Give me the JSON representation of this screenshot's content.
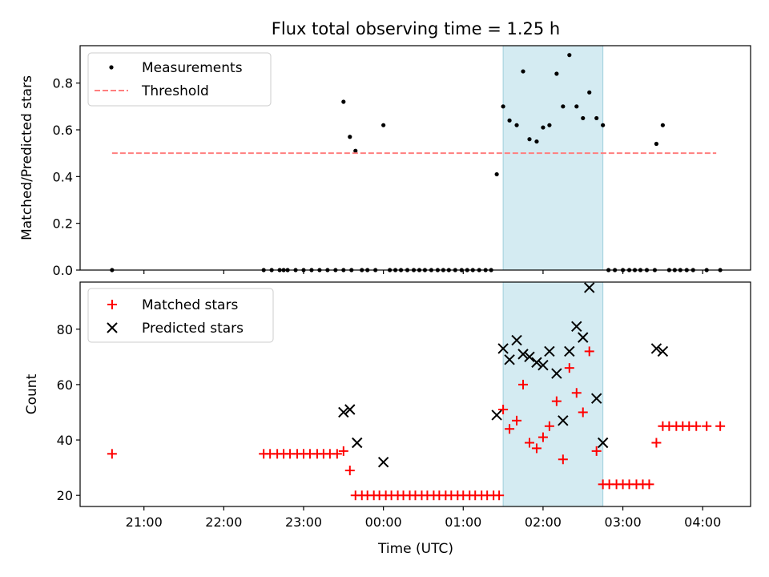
{
  "chart_data": {
    "title": "Flux total observing time = 1.25 h",
    "x_axis": {
      "label": "Time (UTC)",
      "unit": "hours relative to 00:00 UTC",
      "range": [
        -3.8,
        4.6
      ],
      "ticks": [
        -3,
        -2,
        -1,
        0,
        1,
        2,
        3,
        4
      ],
      "tick_labels": [
        "21:00",
        "22:00",
        "23:00",
        "00:00",
        "01:00",
        "02:00",
        "03:00",
        "04:00"
      ]
    },
    "highlight_span": [
      1.5,
      2.75
    ],
    "panels": [
      {
        "type": "scatter",
        "ylabel": "Matched/Predicted stars",
        "ylim": [
          0,
          0.96
        ],
        "yticks": [
          0.0,
          0.2,
          0.4,
          0.6,
          0.8
        ],
        "ytick_labels": [
          "0.0",
          "0.2",
          "0.4",
          "0.6",
          "0.8"
        ],
        "legend_position": "upper left",
        "series": [
          {
            "name": "Measurements",
            "type": "scatter",
            "marker": "dot",
            "color": "#000000",
            "points": [
              [
                -3.4,
                0.0
              ],
              [
                -1.5,
                0.0
              ],
              [
                -1.4,
                0.0
              ],
              [
                -1.3,
                0.0
              ],
              [
                -1.25,
                0.0
              ],
              [
                -1.2,
                0.0
              ],
              [
                -1.1,
                0.0
              ],
              [
                -1.0,
                0.0
              ],
              [
                -0.9,
                0.0
              ],
              [
                -0.8,
                0.0
              ],
              [
                -0.7,
                0.0
              ],
              [
                -0.6,
                0.0
              ],
              [
                -0.5,
                0.0
              ],
              [
                -0.4,
                0.0
              ],
              [
                -0.5,
                0.72
              ],
              [
                -0.42,
                0.57
              ],
              [
                -0.35,
                0.51
              ],
              [
                -0.27,
                0.0
              ],
              [
                -0.2,
                0.0
              ],
              [
                -0.1,
                0.0
              ],
              [
                0.0,
                0.62
              ],
              [
                0.08,
                0.0
              ],
              [
                0.15,
                0.0
              ],
              [
                0.22,
                0.0
              ],
              [
                0.3,
                0.0
              ],
              [
                0.38,
                0.0
              ],
              [
                0.45,
                0.0
              ],
              [
                0.52,
                0.0
              ],
              [
                0.6,
                0.0
              ],
              [
                0.68,
                0.0
              ],
              [
                0.75,
                0.0
              ],
              [
                0.82,
                0.0
              ],
              [
                0.9,
                0.0
              ],
              [
                0.98,
                0.0
              ],
              [
                1.05,
                0.0
              ],
              [
                1.12,
                0.0
              ],
              [
                1.2,
                0.0
              ],
              [
                1.28,
                0.0
              ],
              [
                1.35,
                0.0
              ],
              [
                1.42,
                0.41
              ],
              [
                1.5,
                0.7
              ],
              [
                1.58,
                0.64
              ],
              [
                1.67,
                0.62
              ],
              [
                1.75,
                0.85
              ],
              [
                1.83,
                0.56
              ],
              [
                1.92,
                0.55
              ],
              [
                2.0,
                0.61
              ],
              [
                2.08,
                0.62
              ],
              [
                2.17,
                0.84
              ],
              [
                2.25,
                0.7
              ],
              [
                2.33,
                0.92
              ],
              [
                2.42,
                0.7
              ],
              [
                2.5,
                0.65
              ],
              [
                2.58,
                0.76
              ],
              [
                2.67,
                0.65
              ],
              [
                2.75,
                0.62
              ],
              [
                2.82,
                0.0
              ],
              [
                2.9,
                0.0
              ],
              [
                3.0,
                0.0
              ],
              [
                3.08,
                0.0
              ],
              [
                3.15,
                0.0
              ],
              [
                3.22,
                0.0
              ],
              [
                3.3,
                0.0
              ],
              [
                3.4,
                0.0
              ],
              [
                3.42,
                0.54
              ],
              [
                3.5,
                0.62
              ],
              [
                3.58,
                0.0
              ],
              [
                3.65,
                0.0
              ],
              [
                3.72,
                0.0
              ],
              [
                3.8,
                0.0
              ],
              [
                3.88,
                0.0
              ],
              [
                4.05,
                0.0
              ],
              [
                4.22,
                0.0
              ]
            ]
          },
          {
            "name": "Threshold",
            "type": "line",
            "style": "dashed",
            "color": "#ff7f7f",
            "points": [
              [
                -3.4,
                0.5
              ],
              [
                4.17,
                0.5
              ]
            ]
          }
        ]
      },
      {
        "type": "scatter",
        "ylabel": "Count",
        "ylim": [
          16,
          97
        ],
        "yticks": [
          20,
          40,
          60,
          80
        ],
        "ytick_labels": [
          "20",
          "40",
          "60",
          "80"
        ],
        "legend_position": "upper left",
        "series": [
          {
            "name": "Matched stars",
            "type": "scatter",
            "marker": "plus",
            "color": "#ff0000",
            "points": [
              [
                -3.4,
                35
              ],
              [
                -1.5,
                35
              ],
              [
                -1.42,
                35
              ],
              [
                -1.33,
                35
              ],
              [
                -1.25,
                35
              ],
              [
                -1.17,
                35
              ],
              [
                -1.08,
                35
              ],
              [
                -1.0,
                35
              ],
              [
                -0.92,
                35
              ],
              [
                -0.83,
                35
              ],
              [
                -0.75,
                35
              ],
              [
                -0.67,
                35
              ],
              [
                -0.58,
                35
              ],
              [
                -0.5,
                36
              ],
              [
                -0.42,
                29
              ],
              [
                -0.35,
                20
              ],
              [
                -0.27,
                20
              ],
              [
                -0.2,
                20
              ],
              [
                -0.12,
                20
              ],
              [
                -0.05,
                20
              ],
              [
                0.03,
                20
              ],
              [
                0.1,
                20
              ],
              [
                0.18,
                20
              ],
              [
                0.25,
                20
              ],
              [
                0.33,
                20
              ],
              [
                0.4,
                20
              ],
              [
                0.48,
                20
              ],
              [
                0.55,
                20
              ],
              [
                0.63,
                20
              ],
              [
                0.7,
                20
              ],
              [
                0.78,
                20
              ],
              [
                0.85,
                20
              ],
              [
                0.93,
                20
              ],
              [
                1.0,
                20
              ],
              [
                1.08,
                20
              ],
              [
                1.15,
                20
              ],
              [
                1.23,
                20
              ],
              [
                1.3,
                20
              ],
              [
                1.38,
                20
              ],
              [
                1.45,
                20
              ],
              [
                1.5,
                51
              ],
              [
                1.58,
                44
              ],
              [
                1.67,
                47
              ],
              [
                1.75,
                60
              ],
              [
                1.83,
                39
              ],
              [
                1.92,
                37
              ],
              [
                2.0,
                41
              ],
              [
                2.08,
                45
              ],
              [
                2.17,
                54
              ],
              [
                2.25,
                33
              ],
              [
                2.33,
                66
              ],
              [
                2.42,
                57
              ],
              [
                2.5,
                50
              ],
              [
                2.58,
                72
              ],
              [
                2.67,
                36
              ],
              [
                2.75,
                24
              ],
              [
                2.83,
                24
              ],
              [
                2.92,
                24
              ],
              [
                3.0,
                24
              ],
              [
                3.08,
                24
              ],
              [
                3.17,
                24
              ],
              [
                3.25,
                24
              ],
              [
                3.33,
                24
              ],
              [
                3.42,
                39
              ],
              [
                3.5,
                45
              ],
              [
                3.58,
                45
              ],
              [
                3.67,
                45
              ],
              [
                3.75,
                45
              ],
              [
                3.83,
                45
              ],
              [
                3.92,
                45
              ],
              [
                4.05,
                45
              ],
              [
                4.22,
                45
              ]
            ]
          },
          {
            "name": "Predicted stars",
            "type": "scatter",
            "marker": "x",
            "color": "#000000",
            "points": [
              [
                -0.5,
                50
              ],
              [
                -0.42,
                51
              ],
              [
                -0.33,
                39
              ],
              [
                0.0,
                32
              ],
              [
                1.42,
                49
              ],
              [
                1.5,
                73
              ],
              [
                1.58,
                69
              ],
              [
                1.67,
                76
              ],
              [
                1.75,
                71
              ],
              [
                1.83,
                70
              ],
              [
                1.92,
                68
              ],
              [
                2.0,
                67
              ],
              [
                2.08,
                72
              ],
              [
                2.17,
                64
              ],
              [
                2.25,
                47
              ],
              [
                2.33,
                72
              ],
              [
                2.42,
                81
              ],
              [
                2.5,
                77
              ],
              [
                2.58,
                95
              ],
              [
                2.67,
                55
              ],
              [
                2.75,
                39
              ],
              [
                3.42,
                73
              ],
              [
                3.5,
                72
              ]
            ]
          }
        ]
      }
    ]
  }
}
